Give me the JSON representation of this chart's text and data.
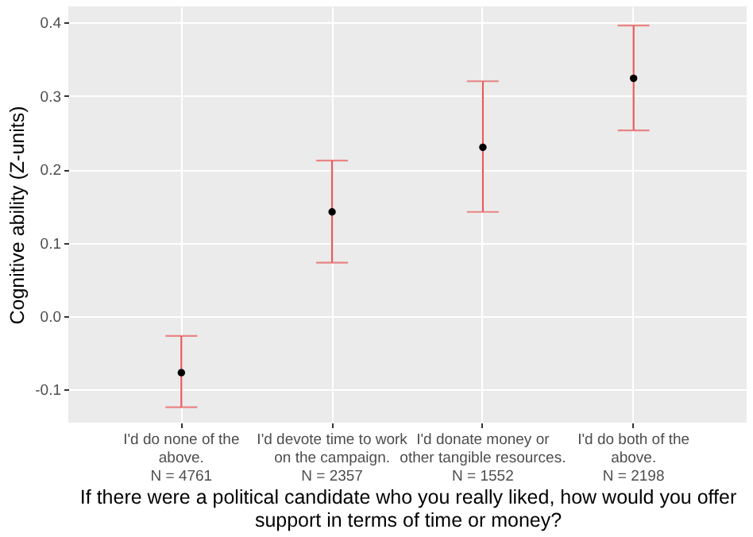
{
  "chart_data": {
    "type": "scatter",
    "xlabel": "If there were a political candidate who you really liked, how would you offer\nsupport in terms of time or money?",
    "ylabel": "Cognitive ability (Z-units)",
    "categories": [
      "I'd do none of the\nabove.\nN = 4761",
      "I'd devote time to work\non the campaign.\nN = 2357",
      "I'd donate money or\nother tangible resources.\nN = 1552",
      "I'd do both of the\nabove.\nN = 2198"
    ],
    "series": [
      {
        "color": "#000000",
        "values": [
          -0.077,
          0.142,
          0.23,
          0.324
        ],
        "errors": [
          [
            -0.124,
            -0.027
          ],
          [
            0.073,
            0.212
          ],
          [
            0.142,
            0.32
          ],
          [
            0.253,
            0.396
          ]
        ]
      }
    ],
    "ylim": [
      -0.145,
      0.422
    ],
    "yticks": [
      -0.1,
      {
        "value": 0,
        "label": "0.0"
      },
      0.1,
      0.2,
      0.3,
      0.4
    ],
    "grid": true,
    "marker": "circle"
  }
}
